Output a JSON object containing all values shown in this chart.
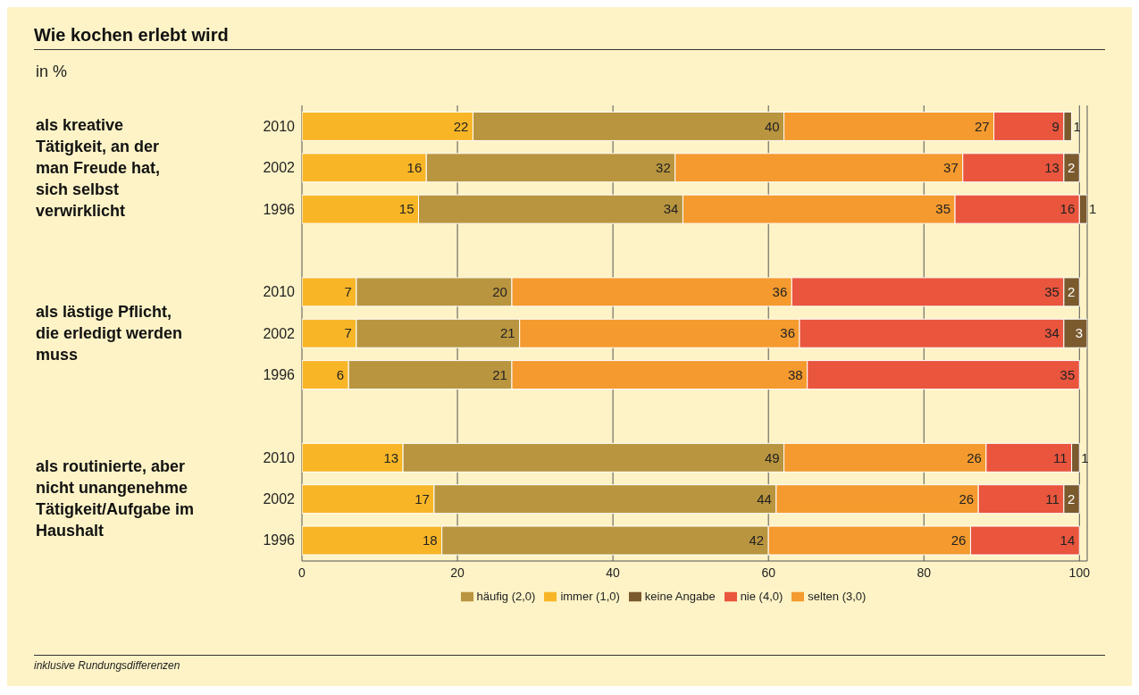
{
  "chart_data": {
    "type": "bar",
    "orientation": "horizontal",
    "stacked": true,
    "title": "Wie kochen erlebt wird",
    "subtitle": "in %",
    "categories": [
      "2010",
      "2002",
      "1996",
      null,
      "2010",
      "2002",
      "1996",
      null,
      "2010",
      "2002",
      "1996"
    ],
    "series": [
      {
        "name": "immer (1,0)",
        "color": "#f8b627",
        "values": [
          22,
          16,
          15,
          null,
          7,
          7,
          6,
          null,
          13,
          17,
          18
        ]
      },
      {
        "name": "häufig (2,0)",
        "color": "#b9953f",
        "values": [
          40,
          32,
          34,
          null,
          20,
          21,
          21,
          null,
          49,
          44,
          42
        ]
      },
      {
        "name": "selten (3,0)",
        "color": "#f49a2e",
        "values": [
          27,
          37,
          35,
          null,
          36,
          36,
          38,
          null,
          26,
          26,
          26
        ]
      },
      {
        "name": "nie (4,0)",
        "color": "#e9553d",
        "values": [
          9,
          13,
          16,
          null,
          35,
          34,
          35,
          null,
          11,
          11,
          14
        ]
      },
      {
        "name": "keine Angabe",
        "color": "#7b5a2e",
        "values": [
          1,
          2,
          1,
          null,
          2,
          3,
          null,
          null,
          1,
          2,
          null
        ]
      }
    ],
    "xlim": [
      0,
      101
    ],
    "xticks": [
      0,
      20,
      40,
      60,
      80,
      100
    ],
    "grid": "x",
    "legend": "bottom",
    "data_labels": true,
    "annotations": [
      "als kreative Tätigkeit, an der man Freude hat, sich selbst verwirklicht",
      "als lästige Pflicht, die erledigt werden muss",
      "als routinierte, aber nicht unangenehme Tätigkeit/Aufgabe im Haushalt",
      "inklusive Rundungsdifferenzen"
    ]
  }
}
